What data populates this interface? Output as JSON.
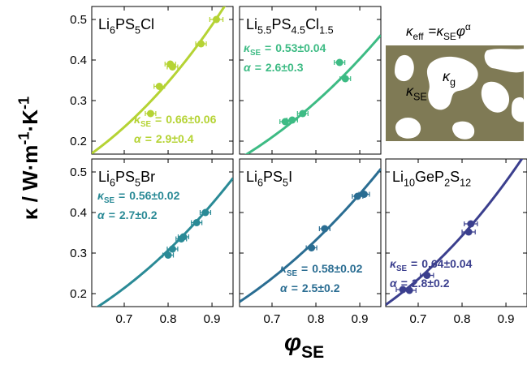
{
  "symbols": {
    "kappa": "κ",
    "se": "SE",
    "alpha": "α",
    "equals": "=",
    "phi": "φ",
    "eff": "eff",
    "g": "g"
  },
  "y_label_parts": [
    "κ / W·m",
    "-1",
    "·K",
    "-1"
  ],
  "chart_data": [
    {
      "type": "scatter",
      "title_parts": [
        "Li",
        "6",
        "PS",
        "5",
        "Cl"
      ],
      "color": "#b5d334",
      "x": [
        0.76,
        0.78,
        0.805,
        0.81,
        0.875,
        0.91
      ],
      "y": [
        0.268,
        0.335,
        0.39,
        0.383,
        0.44,
        0.5
      ],
      "xerr": [
        0.012,
        0.012,
        0.012,
        0.012,
        0.012,
        0.015
      ],
      "fit": {
        "kappa": 0.66,
        "alpha": 2.9
      },
      "kappa_label": "0.66±0.06",
      "alpha_label": "2.9±0.4",
      "xlim": [
        0.626,
        0.948
      ],
      "ylim": [
        0.168,
        0.532
      ],
      "xticks": [
        0.7,
        0.8,
        0.9
      ],
      "yticks": [
        0.2,
        0.3,
        0.4,
        0.5
      ],
      "xtick_labels": false,
      "ytick_labels": true
    },
    {
      "type": "scatter",
      "title_parts": [
        "Li",
        "5.5",
        "PS",
        "4.5",
        "Cl",
        "1.5"
      ],
      "color": "#3dbb84",
      "x": [
        0.73,
        0.746,
        0.77,
        0.854,
        0.867
      ],
      "y": [
        0.248,
        0.252,
        0.268,
        0.394,
        0.354
      ],
      "xerr": [
        0.012,
        0.012,
        0.012,
        0.012,
        0.012
      ],
      "fit": {
        "kappa": 0.53,
        "alpha": 2.6
      },
      "kappa_label": "0.53±0.04",
      "alpha_label": "2.6±0.3",
      "xlim": [
        0.626,
        0.948
      ],
      "ylim": [
        0.168,
        0.532
      ],
      "xticks": [
        0.7,
        0.8,
        0.9
      ],
      "yticks": [
        0.2,
        0.3,
        0.4,
        0.5
      ],
      "xtick_labels": false,
      "ytick_labels": false
    },
    {
      "type": "scatter",
      "title_parts": [
        "Li",
        "6",
        "PS",
        "5",
        "Br"
      ],
      "color": "#2a8a96",
      "x": [
        0.8,
        0.81,
        0.83,
        0.835,
        0.865,
        0.885
      ],
      "y": [
        0.295,
        0.31,
        0.335,
        0.34,
        0.375,
        0.4
      ],
      "xerr": [
        0.012,
        0.012,
        0.012,
        0.012,
        0.012,
        0.012
      ],
      "fit": {
        "kappa": 0.56,
        "alpha": 2.7
      },
      "kappa_label": "0.56±0.02",
      "alpha_label": "2.7±0.2",
      "xlim": [
        0.626,
        0.948
      ],
      "ylim": [
        0.168,
        0.532
      ],
      "xticks": [
        0.7,
        0.8,
        0.9
      ],
      "yticks": [
        0.2,
        0.3,
        0.4,
        0.5
      ],
      "xtick_labels": true,
      "ytick_labels": true
    },
    {
      "type": "scatter",
      "title_parts": [
        "Li",
        "6",
        "PS",
        "5",
        "I"
      ],
      "color": "#2a6d92",
      "x": [
        0.79,
        0.82,
        0.895,
        0.91
      ],
      "y": [
        0.313,
        0.36,
        0.44,
        0.445
      ],
      "xerr": [
        0.012,
        0.012,
        0.012,
        0.012
      ],
      "fit": {
        "kappa": 0.58,
        "alpha": 2.5
      },
      "kappa_label": "0.58±0.02",
      "alpha_label": "2.5±0.2",
      "xlim": [
        0.626,
        0.948
      ],
      "ylim": [
        0.168,
        0.532
      ],
      "xticks": [
        0.7,
        0.8,
        0.9
      ],
      "yticks": [
        0.2,
        0.3,
        0.4,
        0.5
      ],
      "xtick_labels": true,
      "ytick_labels": false
    },
    {
      "type": "scatter",
      "title_parts": [
        "Li",
        "10",
        "GeP",
        "2",
        "S",
        "12"
      ],
      "color": "#3b3f8e",
      "x": [
        0.665,
        0.68,
        0.72,
        0.815,
        0.82
      ],
      "y": [
        0.21,
        0.208,
        0.245,
        0.352,
        0.372
      ],
      "xerr": [
        0.015,
        0.015,
        0.015,
        0.015,
        0.015
      ],
      "fit": {
        "kappa": 0.64,
        "alpha": 2.8
      },
      "kappa_label": "0.64±0.04",
      "alpha_label": "2.8±0.2",
      "xlim": [
        0.626,
        0.948
      ],
      "ylim": [
        0.168,
        0.532
      ],
      "xticks": [
        0.7,
        0.8,
        0.9
      ],
      "yticks": [
        0.2,
        0.3,
        0.4,
        0.5
      ],
      "xtick_labels": true,
      "ytick_labels": false
    }
  ]
}
